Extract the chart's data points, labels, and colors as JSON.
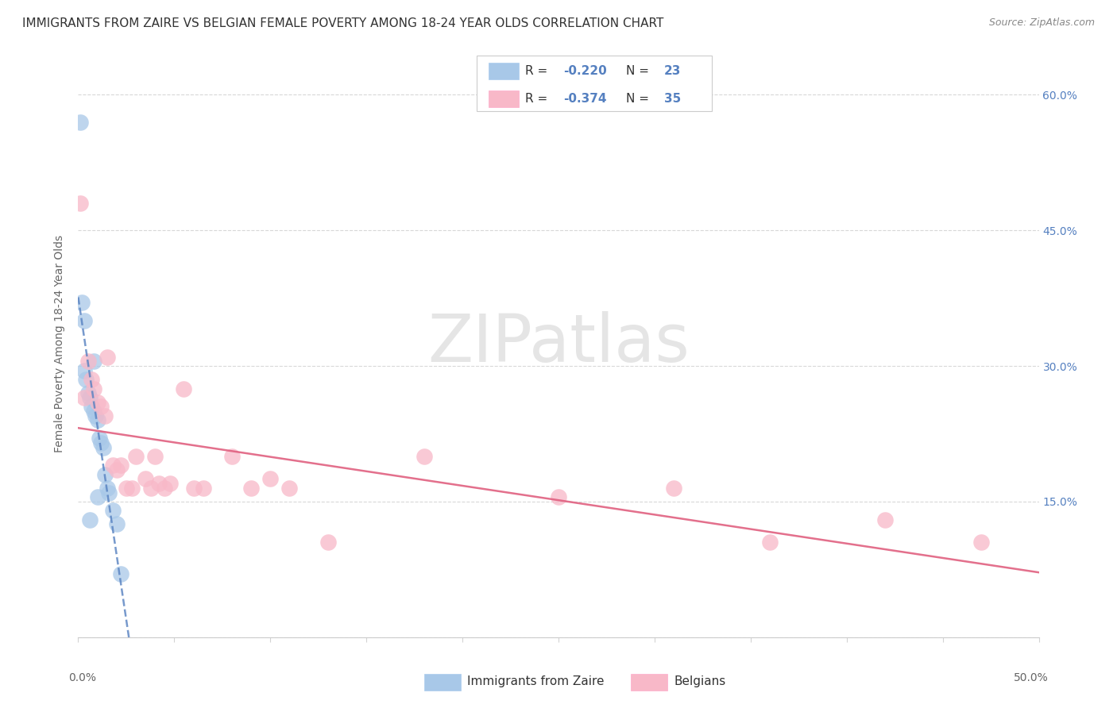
{
  "title": "IMMIGRANTS FROM ZAIRE VS BELGIAN FEMALE POVERTY AMONG 18-24 YEAR OLDS CORRELATION CHART",
  "source": "Source: ZipAtlas.com",
  "ylabel": "Female Poverty Among 18-24 Year Olds",
  "ytick_values": [
    0.0,
    0.15,
    0.3,
    0.45,
    0.6
  ],
  "ytick_labels_right": [
    "",
    "15.0%",
    "30.0%",
    "45.0%",
    "60.0%"
  ],
  "xlim": [
    0,
    0.5
  ],
  "ylim": [
    0,
    0.65
  ],
  "xtick_values": [
    0.0,
    0.05,
    0.1,
    0.15,
    0.2,
    0.25,
    0.3,
    0.35,
    0.4,
    0.45,
    0.5
  ],
  "watermark": "ZIPatlas",
  "legend_r1": "R = -0.220",
  "legend_n1": "N = 23",
  "legend_r2": "R = -0.374",
  "legend_n2": "N = 35",
  "blue_color": "#a8c8e8",
  "pink_color": "#f8b8c8",
  "blue_line_color": "#5580c0",
  "pink_line_color": "#e06080",
  "blue_scatter_x": [
    0.001,
    0.002,
    0.003,
    0.004,
    0.005,
    0.006,
    0.007,
    0.008,
    0.009,
    0.01,
    0.011,
    0.012,
    0.013,
    0.014,
    0.015,
    0.016,
    0.018,
    0.02,
    0.022,
    0.003,
    0.008,
    0.006,
    0.01
  ],
  "blue_scatter_y": [
    0.57,
    0.37,
    0.35,
    0.285,
    0.27,
    0.265,
    0.255,
    0.25,
    0.245,
    0.24,
    0.22,
    0.215,
    0.21,
    0.18,
    0.165,
    0.16,
    0.14,
    0.125,
    0.07,
    0.295,
    0.305,
    0.13,
    0.155
  ],
  "pink_scatter_x": [
    0.001,
    0.003,
    0.005,
    0.007,
    0.008,
    0.01,
    0.012,
    0.014,
    0.015,
    0.018,
    0.02,
    0.022,
    0.025,
    0.028,
    0.03,
    0.035,
    0.038,
    0.04,
    0.042,
    0.045,
    0.048,
    0.055,
    0.06,
    0.065,
    0.08,
    0.09,
    0.1,
    0.11,
    0.13,
    0.18,
    0.25,
    0.31,
    0.36,
    0.42,
    0.47
  ],
  "pink_scatter_y": [
    0.48,
    0.265,
    0.305,
    0.285,
    0.275,
    0.26,
    0.255,
    0.245,
    0.31,
    0.19,
    0.185,
    0.19,
    0.165,
    0.165,
    0.2,
    0.175,
    0.165,
    0.2,
    0.17,
    0.165,
    0.17,
    0.275,
    0.165,
    0.165,
    0.2,
    0.165,
    0.175,
    0.165,
    0.105,
    0.2,
    0.155,
    0.165,
    0.105,
    0.13,
    0.105
  ],
  "blue_line_x_start": 0.0,
  "blue_line_x_end": 0.38,
  "pink_line_x_start": 0.0,
  "pink_line_x_end": 0.5,
  "title_fontsize": 11,
  "source_fontsize": 9,
  "axis_label_fontsize": 10,
  "tick_fontsize": 10,
  "legend_fontsize": 11,
  "watermark_fontsize": 60
}
